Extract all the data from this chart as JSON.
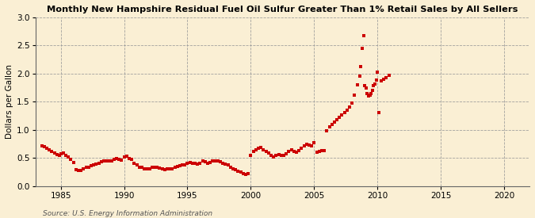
{
  "title": "Monthly New Hampshire Residual Fuel Oil Sulfur Greater Than 1% Retail Sales by All Sellers",
  "ylabel": "Dollars per Gallon",
  "source": "Source: U.S. Energy Information Administration",
  "background_color": "#faefd4",
  "plot_bg_color": "#faefd4",
  "marker_color": "#cc0000",
  "xlim": [
    1983.0,
    2022.0
  ],
  "ylim": [
    0.0,
    3.0
  ],
  "xticks": [
    1985,
    1990,
    1995,
    2000,
    2005,
    2010,
    2015,
    2020
  ],
  "yticks": [
    0.0,
    0.5,
    1.0,
    1.5,
    2.0,
    2.5,
    3.0
  ],
  "data": [
    [
      1983.5,
      0.72
    ],
    [
      1983.7,
      0.7
    ],
    [
      1983.9,
      0.67
    ],
    [
      1984.1,
      0.64
    ],
    [
      1984.3,
      0.61
    ],
    [
      1984.5,
      0.58
    ],
    [
      1984.7,
      0.56
    ],
    [
      1984.9,
      0.55
    ],
    [
      1985.0,
      0.57
    ],
    [
      1985.2,
      0.58
    ],
    [
      1985.4,
      0.55
    ],
    [
      1985.6,
      0.51
    ],
    [
      1985.8,
      0.48
    ],
    [
      1986.0,
      0.42
    ],
    [
      1986.2,
      0.29
    ],
    [
      1986.4,
      0.27
    ],
    [
      1986.6,
      0.28
    ],
    [
      1986.8,
      0.3
    ],
    [
      1987.0,
      0.33
    ],
    [
      1987.2,
      0.34
    ],
    [
      1987.4,
      0.36
    ],
    [
      1987.6,
      0.38
    ],
    [
      1987.8,
      0.39
    ],
    [
      1988.0,
      0.41
    ],
    [
      1988.2,
      0.43
    ],
    [
      1988.4,
      0.44
    ],
    [
      1988.6,
      0.45
    ],
    [
      1988.8,
      0.44
    ],
    [
      1989.0,
      0.45
    ],
    [
      1989.2,
      0.48
    ],
    [
      1989.4,
      0.49
    ],
    [
      1989.6,
      0.47
    ],
    [
      1989.8,
      0.46
    ],
    [
      1990.0,
      0.51
    ],
    [
      1990.2,
      0.53
    ],
    [
      1990.4,
      0.49
    ],
    [
      1990.6,
      0.47
    ],
    [
      1990.8,
      0.41
    ],
    [
      1991.0,
      0.37
    ],
    [
      1991.2,
      0.34
    ],
    [
      1991.4,
      0.33
    ],
    [
      1991.6,
      0.31
    ],
    [
      1991.8,
      0.3
    ],
    [
      1992.0,
      0.31
    ],
    [
      1992.2,
      0.33
    ],
    [
      1992.4,
      0.34
    ],
    [
      1992.6,
      0.33
    ],
    [
      1992.8,
      0.32
    ],
    [
      1993.0,
      0.3
    ],
    [
      1993.2,
      0.29
    ],
    [
      1993.4,
      0.3
    ],
    [
      1993.6,
      0.3
    ],
    [
      1993.8,
      0.31
    ],
    [
      1994.0,
      0.33
    ],
    [
      1994.2,
      0.35
    ],
    [
      1994.4,
      0.36
    ],
    [
      1994.6,
      0.37
    ],
    [
      1994.8,
      0.38
    ],
    [
      1995.0,
      0.4
    ],
    [
      1995.2,
      0.42
    ],
    [
      1995.4,
      0.41
    ],
    [
      1995.6,
      0.4
    ],
    [
      1995.8,
      0.39
    ],
    [
      1996.0,
      0.41
    ],
    [
      1996.2,
      0.44
    ],
    [
      1996.4,
      0.43
    ],
    [
      1996.6,
      0.41
    ],
    [
      1996.8,
      0.42
    ],
    [
      1997.0,
      0.44
    ],
    [
      1997.2,
      0.45
    ],
    [
      1997.4,
      0.44
    ],
    [
      1997.6,
      0.43
    ],
    [
      1997.8,
      0.41
    ],
    [
      1998.0,
      0.39
    ],
    [
      1998.2,
      0.37
    ],
    [
      1998.4,
      0.34
    ],
    [
      1998.6,
      0.31
    ],
    [
      1998.8,
      0.29
    ],
    [
      1999.0,
      0.26
    ],
    [
      1999.2,
      0.25
    ],
    [
      1999.4,
      0.22
    ],
    [
      1999.6,
      0.21
    ],
    [
      1999.8,
      0.22
    ],
    [
      2000.0,
      0.55
    ],
    [
      2000.2,
      0.62
    ],
    [
      2000.4,
      0.65
    ],
    [
      2000.6,
      0.67
    ],
    [
      2000.8,
      0.68
    ],
    [
      2001.0,
      0.65
    ],
    [
      2001.2,
      0.62
    ],
    [
      2001.4,
      0.58
    ],
    [
      2001.6,
      0.55
    ],
    [
      2001.8,
      0.52
    ],
    [
      2002.0,
      0.54
    ],
    [
      2002.2,
      0.56
    ],
    [
      2002.4,
      0.55
    ],
    [
      2002.6,
      0.54
    ],
    [
      2002.8,
      0.57
    ],
    [
      2003.0,
      0.61
    ],
    [
      2003.2,
      0.64
    ],
    [
      2003.4,
      0.62
    ],
    [
      2003.6,
      0.6
    ],
    [
      2003.8,
      0.63
    ],
    [
      2004.0,
      0.67
    ],
    [
      2004.2,
      0.71
    ],
    [
      2004.4,
      0.74
    ],
    [
      2004.6,
      0.73
    ],
    [
      2004.8,
      0.72
    ],
    [
      2005.0,
      0.77
    ],
    [
      2005.2,
      0.6
    ],
    [
      2005.4,
      0.62
    ],
    [
      2005.6,
      0.63
    ],
    [
      2005.8,
      0.63
    ],
    [
      2006.0,
      0.98
    ],
    [
      2006.2,
      1.05
    ],
    [
      2006.4,
      1.1
    ],
    [
      2006.6,
      1.14
    ],
    [
      2006.8,
      1.18
    ],
    [
      2007.0,
      1.22
    ],
    [
      2007.2,
      1.27
    ],
    [
      2007.4,
      1.3
    ],
    [
      2007.6,
      1.35
    ],
    [
      2007.8,
      1.4
    ],
    [
      2008.0,
      1.48
    ],
    [
      2008.2,
      1.62
    ],
    [
      2008.4,
      1.8
    ],
    [
      2008.6,
      1.95
    ],
    [
      2008.7,
      2.12
    ],
    [
      2008.8,
      2.45
    ],
    [
      2008.9,
      2.68
    ],
    [
      2009.0,
      1.78
    ],
    [
      2009.1,
      1.75
    ],
    [
      2009.2,
      1.65
    ],
    [
      2009.3,
      1.6
    ],
    [
      2009.4,
      1.62
    ],
    [
      2009.5,
      1.65
    ],
    [
      2009.6,
      1.7
    ],
    [
      2009.7,
      1.78
    ],
    [
      2009.8,
      1.82
    ],
    [
      2009.9,
      1.88
    ],
    [
      2010.0,
      2.03
    ],
    [
      2010.1,
      1.3
    ],
    [
      2010.3,
      1.87
    ],
    [
      2010.5,
      1.9
    ],
    [
      2010.7,
      1.93
    ],
    [
      2010.9,
      1.97
    ]
  ]
}
